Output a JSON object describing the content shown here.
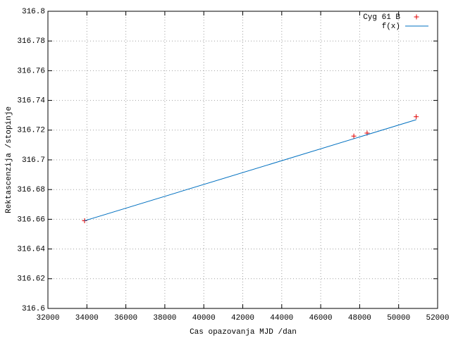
{
  "chart_data": {
    "type": "scatter",
    "xlabel": "Cas opazovanja MJD /dan",
    "ylabel": "Rektascenzija /stopinje",
    "series": [
      {
        "name": "Cyg 61 B",
        "type": "scatter",
        "color": "#e00000",
        "x": [
          33880,
          47700,
          48380,
          50900
        ],
        "values": [
          316.659,
          316.716,
          316.718,
          316.729
        ]
      },
      {
        "name": "f(x)",
        "type": "line",
        "color": "#0070c0",
        "x": [
          33880,
          50900
        ],
        "values": [
          316.659,
          316.727
        ]
      }
    ],
    "xlim": [
      32000,
      52000
    ],
    "xticks": [
      32000,
      34000,
      36000,
      38000,
      40000,
      42000,
      44000,
      46000,
      48000,
      50000,
      52000
    ],
    "ylim": [
      316.6,
      316.8
    ],
    "yticks": [
      316.6,
      316.62,
      316.64,
      316.66,
      316.68,
      316.7,
      316.72,
      316.74,
      316.76,
      316.78,
      316.8
    ],
    "grid": true,
    "legend": "top-right"
  }
}
